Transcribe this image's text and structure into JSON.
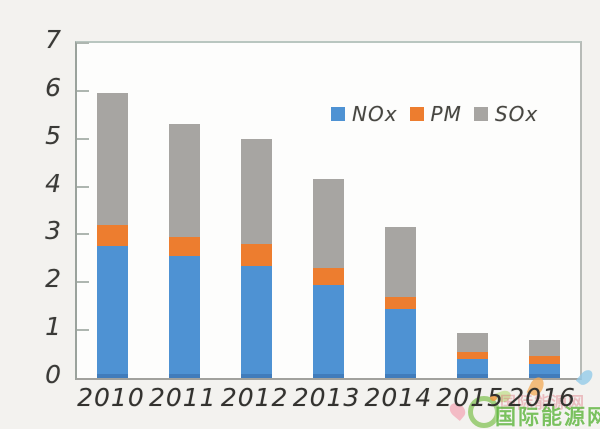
{
  "chart_data": {
    "type": "bar",
    "stacked": true,
    "title": "",
    "xlabel": "",
    "ylabel": "",
    "categories": [
      "2010",
      "2011",
      "2012",
      "2013",
      "2014",
      "2015",
      "2016"
    ],
    "series": [
      {
        "name": "NOx",
        "color": "#4e92d3",
        "values": [
          2.75,
          2.55,
          2.35,
          1.95,
          1.45,
          0.4,
          0.3
        ]
      },
      {
        "name": "PM",
        "color": "#ed7d2f",
        "values": [
          0.45,
          0.4,
          0.45,
          0.35,
          0.25,
          0.15,
          0.15
        ]
      },
      {
        "name": "SOx",
        "color": "#a7a5a2",
        "values": [
          2.75,
          2.35,
          2.2,
          1.85,
          1.45,
          0.4,
          0.35
        ]
      }
    ],
    "totals": [
      5.95,
      5.3,
      5.0,
      4.15,
      3.15,
      0.95,
      0.8
    ],
    "ylim": [
      0,
      7
    ],
    "yticks": [
      0,
      1,
      2,
      3,
      4,
      5,
      6,
      7
    ],
    "grid": false,
    "legend_entries": [
      "NOx",
      "PM",
      "SOx"
    ],
    "legend_position": "inside-top-right"
  },
  "watermark": {
    "text": "国际能源网"
  }
}
